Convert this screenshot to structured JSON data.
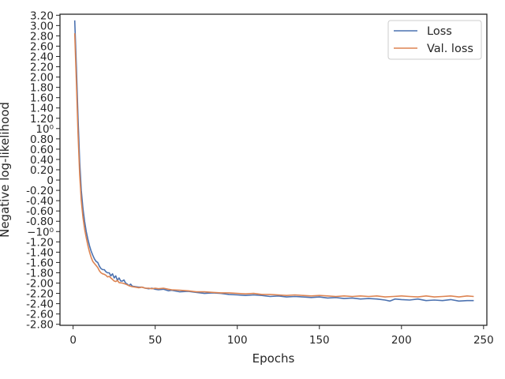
{
  "chart_data": {
    "type": "line",
    "xlabel": "Epochs",
    "ylabel": "Negative log-likelihood",
    "xlim": [
      -8,
      252
    ],
    "ylim": [
      -2.82,
      3.22
    ],
    "x_ticks": [
      {
        "value": 0,
        "label": "0"
      },
      {
        "value": 50,
        "label": "50"
      },
      {
        "value": 100,
        "label": "100"
      },
      {
        "value": 150,
        "label": "150"
      },
      {
        "value": 200,
        "label": "200"
      },
      {
        "value": 250,
        "label": "250"
      }
    ],
    "y_ticks": [
      {
        "value": 3.2,
        "label": "3.20"
      },
      {
        "value": 3.0,
        "label": "3.00"
      },
      {
        "value": 2.8,
        "label": "2.80"
      },
      {
        "value": 2.6,
        "label": "2.60"
      },
      {
        "value": 2.4,
        "label": "2.40"
      },
      {
        "value": 2.2,
        "label": "2.20"
      },
      {
        "value": 2.0,
        "label": "2.00"
      },
      {
        "value": 1.8,
        "label": "1.80"
      },
      {
        "value": 1.6,
        "label": "1.60"
      },
      {
        "value": 1.4,
        "label": "1.40"
      },
      {
        "value": 1.2,
        "label": "1.20"
      },
      {
        "value": 1.0,
        "label": "10⁰"
      },
      {
        "value": 0.8,
        "label": "0.80"
      },
      {
        "value": 0.6,
        "label": "0.60"
      },
      {
        "value": 0.4,
        "label": "0.40"
      },
      {
        "value": 0.2,
        "label": "0.20"
      },
      {
        "value": 0.0,
        "label": "0"
      },
      {
        "value": -0.2,
        "label": "-0.20"
      },
      {
        "value": -0.4,
        "label": "-0.40"
      },
      {
        "value": -0.6,
        "label": "-0.60"
      },
      {
        "value": -0.8,
        "label": "-0.80"
      },
      {
        "value": -1.0,
        "label": "−10⁰"
      },
      {
        "value": -1.2,
        "label": "-1.20"
      },
      {
        "value": -1.4,
        "label": "-1.40"
      },
      {
        "value": -1.6,
        "label": "-1.60"
      },
      {
        "value": -1.8,
        "label": "-1.80"
      },
      {
        "value": -2.0,
        "label": "-2.00"
      },
      {
        "value": -2.2,
        "label": "-2.20"
      },
      {
        "value": -2.4,
        "label": "-2.40"
      },
      {
        "value": -2.6,
        "label": "-2.60"
      },
      {
        "value": -2.8,
        "label": "-2.80"
      }
    ],
    "legend": {
      "position": "top-right"
    },
    "grid": false,
    "series": [
      {
        "name": "Loss",
        "color": "#4c72b0",
        "points": [
          [
            1,
            3.1
          ],
          [
            2,
            2.2
          ],
          [
            3,
            1.2
          ],
          [
            4,
            0.35
          ],
          [
            5,
            -0.2
          ],
          [
            6,
            -0.55
          ],
          [
            7,
            -0.8
          ],
          [
            8,
            -1.0
          ],
          [
            9,
            -1.15
          ],
          [
            10,
            -1.28
          ],
          [
            11,
            -1.38
          ],
          [
            12,
            -1.46
          ],
          [
            13,
            -1.53
          ],
          [
            14,
            -1.58
          ],
          [
            15,
            -1.6
          ],
          [
            16,
            -1.67
          ],
          [
            17,
            -1.72
          ],
          [
            18,
            -1.74
          ],
          [
            19,
            -1.74
          ],
          [
            20,
            -1.78
          ],
          [
            21,
            -1.8
          ],
          [
            22,
            -1.8
          ],
          [
            23,
            -1.86
          ],
          [
            24,
            -1.82
          ],
          [
            25,
            -1.9
          ],
          [
            26,
            -1.86
          ],
          [
            27,
            -1.95
          ],
          [
            28,
            -1.9
          ],
          [
            29,
            -1.96
          ],
          [
            30,
            -1.96
          ],
          [
            31,
            -1.94
          ],
          [
            32,
            -2.0
          ],
          [
            33,
            -2.02
          ],
          [
            34,
            -2.05
          ],
          [
            35,
            -2.02
          ],
          [
            36,
            -2.06
          ],
          [
            38,
            -2.07
          ],
          [
            40,
            -2.08
          ],
          [
            42,
            -2.08
          ],
          [
            44,
            -2.1
          ],
          [
            46,
            -2.11
          ],
          [
            48,
            -2.1
          ],
          [
            50,
            -2.12
          ],
          [
            52,
            -2.13
          ],
          [
            55,
            -2.12
          ],
          [
            58,
            -2.15
          ],
          [
            60,
            -2.14
          ],
          [
            65,
            -2.17
          ],
          [
            70,
            -2.16
          ],
          [
            75,
            -2.18
          ],
          [
            80,
            -2.2
          ],
          [
            85,
            -2.19
          ],
          [
            90,
            -2.2
          ],
          [
            95,
            -2.22
          ],
          [
            100,
            -2.23
          ],
          [
            105,
            -2.24
          ],
          [
            110,
            -2.23
          ],
          [
            115,
            -2.24
          ],
          [
            120,
            -2.26
          ],
          [
            125,
            -2.25
          ],
          [
            130,
            -2.27
          ],
          [
            135,
            -2.26
          ],
          [
            140,
            -2.27
          ],
          [
            145,
            -2.28
          ],
          [
            150,
            -2.27
          ],
          [
            155,
            -2.29
          ],
          [
            160,
            -2.28
          ],
          [
            165,
            -2.3
          ],
          [
            170,
            -2.29
          ],
          [
            175,
            -2.31
          ],
          [
            180,
            -2.3
          ],
          [
            185,
            -2.31
          ],
          [
            190,
            -2.33
          ],
          [
            193,
            -2.35
          ],
          [
            196,
            -2.31
          ],
          [
            200,
            -2.32
          ],
          [
            205,
            -2.33
          ],
          [
            210,
            -2.31
          ],
          [
            215,
            -2.34
          ],
          [
            220,
            -2.33
          ],
          [
            225,
            -2.34
          ],
          [
            230,
            -2.32
          ],
          [
            235,
            -2.35
          ],
          [
            240,
            -2.34
          ],
          [
            244,
            -2.34
          ]
        ]
      },
      {
        "name": "Val. loss",
        "color": "#dd8452",
        "points": [
          [
            1,
            2.85
          ],
          [
            2,
            1.9
          ],
          [
            3,
            0.9
          ],
          [
            4,
            0.1
          ],
          [
            5,
            -0.4
          ],
          [
            6,
            -0.72
          ],
          [
            7,
            -0.95
          ],
          [
            8,
            -1.12
          ],
          [
            9,
            -1.27
          ],
          [
            10,
            -1.4
          ],
          [
            11,
            -1.5
          ],
          [
            12,
            -1.58
          ],
          [
            13,
            -1.62
          ],
          [
            14,
            -1.66
          ],
          [
            15,
            -1.7
          ],
          [
            16,
            -1.76
          ],
          [
            17,
            -1.8
          ],
          [
            18,
            -1.82
          ],
          [
            19,
            -1.83
          ],
          [
            20,
            -1.85
          ],
          [
            21,
            -1.88
          ],
          [
            22,
            -1.87
          ],
          [
            23,
            -1.9
          ],
          [
            24,
            -1.93
          ],
          [
            25,
            -1.96
          ],
          [
            26,
            -1.97
          ],
          [
            27,
            -1.95
          ],
          [
            28,
            -1.99
          ],
          [
            30,
            -2.0
          ],
          [
            32,
            -2.02
          ],
          [
            34,
            -2.05
          ],
          [
            36,
            -2.07
          ],
          [
            38,
            -2.08
          ],
          [
            40,
            -2.09
          ],
          [
            42,
            -2.08
          ],
          [
            44,
            -2.1
          ],
          [
            46,
            -2.1
          ],
          [
            48,
            -2.11
          ],
          [
            50,
            -2.1
          ],
          [
            52,
            -2.11
          ],
          [
            55,
            -2.1
          ],
          [
            58,
            -2.12
          ],
          [
            60,
            -2.13
          ],
          [
            65,
            -2.14
          ],
          [
            70,
            -2.15
          ],
          [
            75,
            -2.17
          ],
          [
            80,
            -2.17
          ],
          [
            85,
            -2.18
          ],
          [
            90,
            -2.19
          ],
          [
            95,
            -2.19
          ],
          [
            100,
            -2.2
          ],
          [
            105,
            -2.21
          ],
          [
            110,
            -2.2
          ],
          [
            115,
            -2.22
          ],
          [
            120,
            -2.22
          ],
          [
            125,
            -2.23
          ],
          [
            130,
            -2.24
          ],
          [
            135,
            -2.23
          ],
          [
            140,
            -2.24
          ],
          [
            145,
            -2.25
          ],
          [
            150,
            -2.24
          ],
          [
            155,
            -2.25
          ],
          [
            160,
            -2.26
          ],
          [
            165,
            -2.25
          ],
          [
            170,
            -2.26
          ],
          [
            175,
            -2.25
          ],
          [
            180,
            -2.26
          ],
          [
            185,
            -2.25
          ],
          [
            190,
            -2.27
          ],
          [
            195,
            -2.26
          ],
          [
            200,
            -2.25
          ],
          [
            205,
            -2.26
          ],
          [
            210,
            -2.27
          ],
          [
            215,
            -2.25
          ],
          [
            220,
            -2.27
          ],
          [
            225,
            -2.26
          ],
          [
            230,
            -2.25
          ],
          [
            235,
            -2.27
          ],
          [
            240,
            -2.25
          ],
          [
            244,
            -2.26
          ]
        ]
      }
    ]
  }
}
